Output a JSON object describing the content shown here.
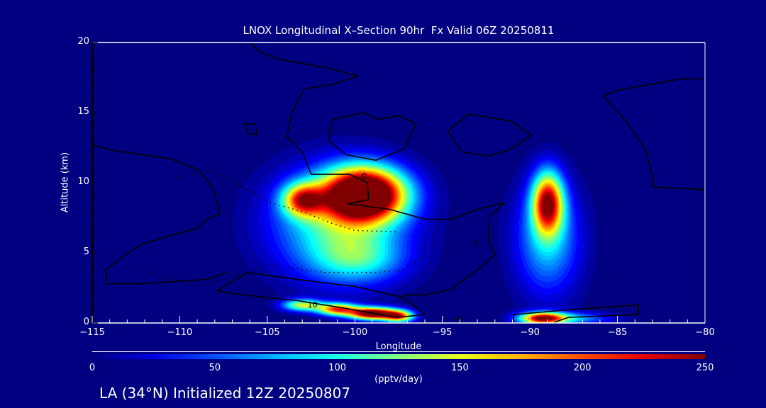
{
  "chart_data": {
    "type": "heatmap",
    "title": "LNOX Longitudinal X–Section 90hr  Fx Valid 06Z 20250811",
    "xlabel": "Longitude",
    "ylabel": "Altitude (km)",
    "xlim": [
      -115,
      -80
    ],
    "ylim": [
      0,
      20
    ],
    "xticks": [
      "−115",
      "−110",
      "−105",
      "−100",
      "−95",
      "−90",
      "−85",
      "−80"
    ],
    "xtick_values": [
      -115,
      -110,
      -105,
      -100,
      -95,
      -90,
      -85,
      -80
    ],
    "yticks": [
      "0",
      "5",
      "10",
      "15",
      "20"
    ],
    "ytick_values": [
      0,
      5,
      10,
      15,
      20
    ],
    "colorbar": {
      "min": 0,
      "max": 250,
      "ticks": [
        "0",
        "50",
        "100",
        "150",
        "200",
        "250"
      ],
      "tick_values": [
        0,
        50,
        100,
        150,
        200,
        250
      ],
      "unit": "(pptv/day)",
      "colormap": "jet"
    },
    "field_peaks": [
      {
        "lon": -99.5,
        "alt": 9.2,
        "value": 330,
        "sx": 1.6,
        "sy": 1.3
      },
      {
        "lon": -103,
        "alt": 8.8,
        "value": 170,
        "sx": 0.8,
        "sy": 0.8
      },
      {
        "lon": -101,
        "alt": 7.2,
        "value": 110,
        "sx": 2.6,
        "sy": 2.6
      },
      {
        "lon": -99.8,
        "alt": 4.6,
        "value": 70,
        "sx": 1.8,
        "sy": 1.2
      },
      {
        "lon": -89,
        "alt": 8.6,
        "value": 220,
        "sx": 0.6,
        "sy": 1.5
      },
      {
        "lon": -89,
        "alt": 6.0,
        "value": 85,
        "sx": 1.3,
        "sy": 2.8
      },
      {
        "lon": -103,
        "alt": 1.3,
        "value": 140,
        "sx": 0.8,
        "sy": 0.3
      },
      {
        "lon": -101,
        "alt": 1.0,
        "value": 200,
        "sx": 0.8,
        "sy": 0.3
      },
      {
        "lon": -99,
        "alt": 0.7,
        "value": 290,
        "sx": 0.9,
        "sy": 0.3
      },
      {
        "lon": -97.5,
        "alt": 0.5,
        "value": 190,
        "sx": 0.6,
        "sy": 0.3
      },
      {
        "lon": -89.3,
        "alt": 0.35,
        "value": 230,
        "sx": 0.9,
        "sy": 0.3
      },
      {
        "lon": -87.5,
        "alt": 0.35,
        "value": 70,
        "sx": 1.6,
        "sy": 0.3
      }
    ],
    "contours": [
      {
        "style": "solid",
        "points": [
          [
            -106,
            20
          ],
          [
            -105.4,
            19.3
          ],
          [
            -104.3,
            18.8
          ],
          [
            -101.6,
            18.2
          ],
          [
            -99.8,
            17.6
          ],
          [
            -101.3,
            17
          ],
          [
            -102.9,
            16.7
          ],
          [
            -103.6,
            15
          ],
          [
            -103.9,
            13.3
          ],
          [
            -103,
            12.2
          ],
          [
            -102.5,
            10.6
          ],
          [
            -100.3,
            10.6
          ],
          [
            -99.3,
            10
          ],
          [
            -99.2,
            8.8
          ],
          [
            -100.4,
            8.5
          ],
          [
            -98,
            8.1
          ],
          [
            -96,
            7.4
          ],
          [
            -94.5,
            7.4
          ],
          [
            -93,
            8.1
          ],
          [
            -91.4,
            8.6
          ],
          [
            -92.3,
            7.6
          ],
          [
            -92.4,
            6
          ],
          [
            -92,
            4.9
          ],
          [
            -92.8,
            4
          ],
          [
            -94.5,
            2.4
          ],
          [
            -96,
            2
          ],
          [
            -97.3,
            2
          ]
        ]
      },
      {
        "style": "solid",
        "points": [
          [
            -98.7,
            14.5
          ],
          [
            -97.5,
            14.8
          ],
          [
            -96.5,
            14.2
          ],
          [
            -97.2,
            12.4
          ],
          [
            -98.8,
            11.6
          ],
          [
            -100.5,
            12
          ],
          [
            -101.5,
            13
          ],
          [
            -101.3,
            14.5
          ],
          [
            -99.5,
            15
          ],
          [
            -98.7,
            14.5
          ]
        ]
      },
      {
        "style": "solid",
        "points": [
          [
            -94.7,
            13.7
          ],
          [
            -93.5,
            14.9
          ],
          [
            -91.1,
            14.4
          ],
          [
            -89.9,
            13.4
          ],
          [
            -91.1,
            12.4
          ],
          [
            -92.3,
            11.9
          ],
          [
            -93.9,
            12.2
          ],
          [
            -94.7,
            13.7
          ]
        ]
      },
      {
        "style": "solid",
        "points": [
          [
            -80,
            17.4
          ],
          [
            -81.4,
            17.4
          ],
          [
            -85,
            16.6
          ],
          [
            -85.8,
            16.2
          ],
          [
            -84.6,
            14.5
          ],
          [
            -83.4,
            12.4
          ],
          [
            -83,
            10.4
          ],
          [
            -83,
            9.7
          ],
          [
            -81.4,
            9.6
          ],
          [
            -80,
            9.5
          ]
        ]
      },
      {
        "style": "solid",
        "points": [
          [
            -115,
            12.7
          ],
          [
            -113.8,
            12.3
          ],
          [
            -110.5,
            11.7
          ],
          [
            -108.9,
            10.9
          ],
          [
            -108.1,
            9.6
          ],
          [
            -107.7,
            7.8
          ],
          [
            -108.5,
            7.4
          ],
          [
            -108.9,
            6.8
          ],
          [
            -110.9,
            6.1
          ],
          [
            -112.2,
            5.6
          ],
          [
            -113.2,
            4.8
          ],
          [
            -114.2,
            3.8
          ],
          [
            -114.2,
            2.8
          ],
          [
            -112.2,
            2.8
          ],
          [
            -108.5,
            3.1
          ],
          [
            -107.3,
            3.6
          ]
        ]
      },
      {
        "style": "solid",
        "points": [
          [
            -107.9,
            2.3
          ],
          [
            -106.1,
            3.6
          ],
          [
            -103.3,
            3.1
          ],
          [
            -100,
            2.6
          ],
          [
            -97.2,
            1.8
          ],
          [
            -96,
            0.6
          ],
          [
            -97.6,
            0.4
          ],
          [
            -100.8,
            1.1
          ],
          [
            -103.3,
            1.6
          ],
          [
            -104.9,
            1.8
          ],
          [
            -106.9,
            2.1
          ],
          [
            -107.9,
            2.3
          ]
        ]
      },
      {
        "style": "solid",
        "points": [
          [
            -91,
            0
          ],
          [
            -90.9,
            0.6
          ],
          [
            -88.2,
            0.9
          ],
          [
            -83.8,
            1.3
          ],
          [
            -83.8,
            0.6
          ],
          [
            -87.8,
            0.4
          ],
          [
            -88.6,
            0.05
          ]
        ]
      },
      {
        "style": "solid",
        "points": [
          [
            -106.3,
            14.2
          ],
          [
            -105.7,
            14.2
          ],
          [
            -105.6,
            13.4
          ],
          [
            -106.1,
            13.5
          ],
          [
            -106.3,
            14.2
          ]
        ]
      },
      {
        "style": "dotted",
        "points": [
          [
            -110.1,
            10.4
          ],
          [
            -108.1,
            10.9
          ],
          [
            -104.9,
            8.6
          ],
          [
            -102.9,
            7.9
          ],
          [
            -101.3,
            7.1
          ],
          [
            -100,
            6.6
          ],
          [
            -97.6,
            6.5
          ]
        ]
      },
      {
        "style": "dotted",
        "points": [
          [
            -112.2,
            3.8
          ],
          [
            -108.9,
            2.6
          ],
          [
            -104.9,
            4.1
          ],
          [
            -101.7,
            3.6
          ],
          [
            -98.8,
            3.6
          ],
          [
            -97.2,
            3.8
          ],
          [
            -96,
            4.8
          ],
          [
            -96,
            5.8
          ],
          [
            -96.8,
            6.3
          ]
        ]
      }
    ],
    "contour_labels": [
      {
        "text": "10",
        "lon": -102.7,
        "alt": 1.1
      },
      {
        "text": "0",
        "lon": -99.6,
        "alt": 10.3
      },
      {
        "text": "0",
        "lon": -93.2,
        "alt": 5.5
      },
      {
        "text": "−0",
        "lon": -94.5,
        "alt": 0.1
      }
    ]
  },
  "footer": "LA (34°N) Initialized 12Z 20250807"
}
